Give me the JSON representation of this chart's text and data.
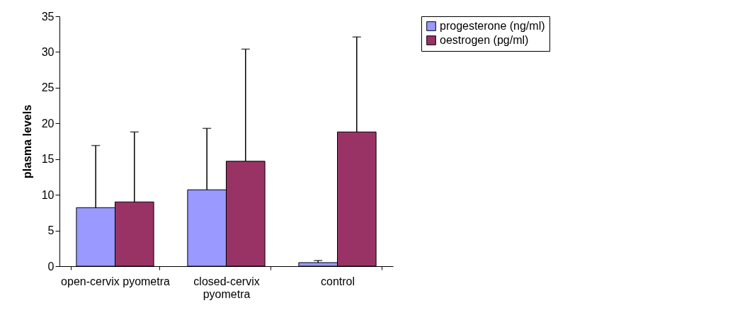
{
  "chart_data": {
    "type": "bar",
    "ylabel": "plasma levels",
    "categories": [
      "open-cervix pyometra",
      "closed-cervix pyometra",
      "control"
    ],
    "series": [
      {
        "name": "progesterone (ng/ml)",
        "color": "#9999ff",
        "values": [
          8.2,
          10.7,
          0.5
        ],
        "errors": [
          [
            8.2,
            16.9
          ],
          [
            10.7,
            19.3
          ],
          [
            0.5,
            0.8
          ]
        ]
      },
      {
        "name": "oestrogen (pg/ml)",
        "color": "#993366",
        "values": [
          9.0,
          14.7,
          18.8
        ],
        "errors": [
          [
            9.0,
            18.8
          ],
          [
            14.7,
            30.4
          ],
          [
            18.8,
            32.1
          ]
        ]
      }
    ],
    "ylim": [
      0,
      35
    ],
    "yticks": [
      0,
      5,
      10,
      15,
      20,
      25,
      30,
      35
    ],
    "grid": false,
    "legend": "right"
  }
}
